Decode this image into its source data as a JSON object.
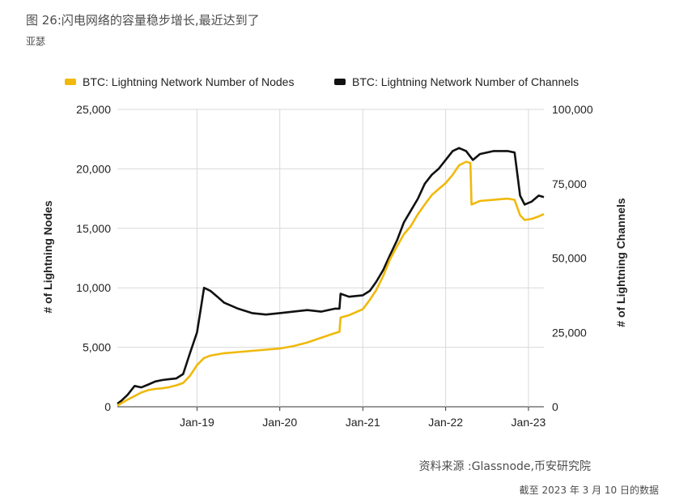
{
  "figure": {
    "title": "图 26:闪电网络的容量稳步增长,最近达到了",
    "subtitle": "亚瑟",
    "source": "资料来源 :Glassnode,币安研究院",
    "date_note": "截至 2023 年 3 月 10 日的数据"
  },
  "colors": {
    "nodes": "#f0b90b",
    "channels": "#111111",
    "grid": "#d9d9d9",
    "text": "#222222"
  },
  "chart_data": {
    "type": "line",
    "legend_position": "top",
    "grid": true,
    "x_axis": {
      "min": "2018-01-15",
      "max": "2023-03-10",
      "ticks": [
        "Jan-19",
        "Jan-20",
        "Jan-21",
        "Jan-22",
        "Jan-23"
      ],
      "tick_dates": [
        "2019-01-01",
        "2020-01-01",
        "2021-01-01",
        "2022-01-01",
        "2023-01-01"
      ]
    },
    "y_left": {
      "label": "# of Lightning Nodes",
      "min": 0,
      "max": 25000,
      "ticks": [
        "0",
        "5,000",
        "10,000",
        "15,000",
        "20,000",
        "25,000"
      ]
    },
    "y_right": {
      "label": "# of Lightning Channels",
      "min": 0,
      "max": 100000,
      "ticks": [
        "0",
        "25,000",
        "50,000",
        "75,000",
        "100,000"
      ]
    },
    "series": [
      {
        "name": "BTC: Lightning Network Number of Nodes",
        "axis": "left",
        "points": [
          [
            "2018-01-15",
            100
          ],
          [
            "2018-02-01",
            300
          ],
          [
            "2018-03-01",
            600
          ],
          [
            "2018-04-01",
            900
          ],
          [
            "2018-05-01",
            1200
          ],
          [
            "2018-06-01",
            1400
          ],
          [
            "2018-07-01",
            1500
          ],
          [
            "2018-08-01",
            1550
          ],
          [
            "2018-09-01",
            1650
          ],
          [
            "2018-10-01",
            1800
          ],
          [
            "2018-11-01",
            2000
          ],
          [
            "2018-12-01",
            2600
          ],
          [
            "2019-01-01",
            3500
          ],
          [
            "2019-02-01",
            4100
          ],
          [
            "2019-03-01",
            4300
          ],
          [
            "2019-05-01",
            4500
          ],
          [
            "2019-07-01",
            4600
          ],
          [
            "2019-09-01",
            4700
          ],
          [
            "2019-11-01",
            4800
          ],
          [
            "2020-01-01",
            4900
          ],
          [
            "2020-03-01",
            5100
          ],
          [
            "2020-05-01",
            5400
          ],
          [
            "2020-07-01",
            5800
          ],
          [
            "2020-09-01",
            6200
          ],
          [
            "2020-09-20",
            6300
          ],
          [
            "2020-09-25",
            7500
          ],
          [
            "2020-11-01",
            7700
          ],
          [
            "2021-01-01",
            8200
          ],
          [
            "2021-02-01",
            9000
          ],
          [
            "2021-03-01",
            9800
          ],
          [
            "2021-04-01",
            11000
          ],
          [
            "2021-05-01",
            12400
          ],
          [
            "2021-06-01",
            13500
          ],
          [
            "2021-07-01",
            14500
          ],
          [
            "2021-08-01",
            15200
          ],
          [
            "2021-09-01",
            16200
          ],
          [
            "2021-10-01",
            17000
          ],
          [
            "2021-11-01",
            17800
          ],
          [
            "2021-12-01",
            18300
          ],
          [
            "2022-01-01",
            18800
          ],
          [
            "2022-02-01",
            19500
          ],
          [
            "2022-03-01",
            20300
          ],
          [
            "2022-04-01",
            20600
          ],
          [
            "2022-04-20",
            20500
          ],
          [
            "2022-04-25",
            17000
          ],
          [
            "2022-06-01",
            17300
          ],
          [
            "2022-08-01",
            17400
          ],
          [
            "2022-10-01",
            17500
          ],
          [
            "2022-11-01",
            17400
          ],
          [
            "2022-11-25",
            16100
          ],
          [
            "2022-12-15",
            15700
          ],
          [
            "2023-01-15",
            15800
          ],
          [
            "2023-02-15",
            16000
          ],
          [
            "2023-03-10",
            16200
          ]
        ]
      },
      {
        "name": "BTC: Lightning Network Number of Channels",
        "axis": "right",
        "points": [
          [
            "2018-01-15",
            1000
          ],
          [
            "2018-02-01",
            2000
          ],
          [
            "2018-03-01",
            4000
          ],
          [
            "2018-04-01",
            7000
          ],
          [
            "2018-05-01",
            6500
          ],
          [
            "2018-06-01",
            7500
          ],
          [
            "2018-07-01",
            8500
          ],
          [
            "2018-08-01",
            9000
          ],
          [
            "2018-09-01",
            9300
          ],
          [
            "2018-10-01",
            9500
          ],
          [
            "2018-11-01",
            11000
          ],
          [
            "2018-12-01",
            18000
          ],
          [
            "2019-01-01",
            25000
          ],
          [
            "2019-01-20",
            34000
          ],
          [
            "2019-02-01",
            40000
          ],
          [
            "2019-03-01",
            39000
          ],
          [
            "2019-04-01",
            37000
          ],
          [
            "2019-05-01",
            35000
          ],
          [
            "2019-07-01",
            33000
          ],
          [
            "2019-09-01",
            31500
          ],
          [
            "2019-11-01",
            31000
          ],
          [
            "2020-01-01",
            31500
          ],
          [
            "2020-03-01",
            32000
          ],
          [
            "2020-05-01",
            32500
          ],
          [
            "2020-07-01",
            32000
          ],
          [
            "2020-09-01",
            33000
          ],
          [
            "2020-09-20",
            33000
          ],
          [
            "2020-09-25",
            38000
          ],
          [
            "2020-11-01",
            37000
          ],
          [
            "2021-01-01",
            37500
          ],
          [
            "2021-02-01",
            39000
          ],
          [
            "2021-03-01",
            42000
          ],
          [
            "2021-04-01",
            46000
          ],
          [
            "2021-05-01",
            51000
          ],
          [
            "2021-06-01",
            56000
          ],
          [
            "2021-07-01",
            62000
          ],
          [
            "2021-08-01",
            66000
          ],
          [
            "2021-09-01",
            70000
          ],
          [
            "2021-10-01",
            75000
          ],
          [
            "2021-11-01",
            78000
          ],
          [
            "2021-12-01",
            80000
          ],
          [
            "2022-01-01",
            83000
          ],
          [
            "2022-02-01",
            86000
          ],
          [
            "2022-03-01",
            87000
          ],
          [
            "2022-04-01",
            86000
          ],
          [
            "2022-05-01",
            83000
          ],
          [
            "2022-06-01",
            85000
          ],
          [
            "2022-08-01",
            86000
          ],
          [
            "2022-10-01",
            86000
          ],
          [
            "2022-11-01",
            85500
          ],
          [
            "2022-11-25",
            71000
          ],
          [
            "2022-12-15",
            68000
          ],
          [
            "2023-01-15",
            69000
          ],
          [
            "2023-02-15",
            71000
          ],
          [
            "2023-03-10",
            70500
          ]
        ]
      }
    ]
  }
}
